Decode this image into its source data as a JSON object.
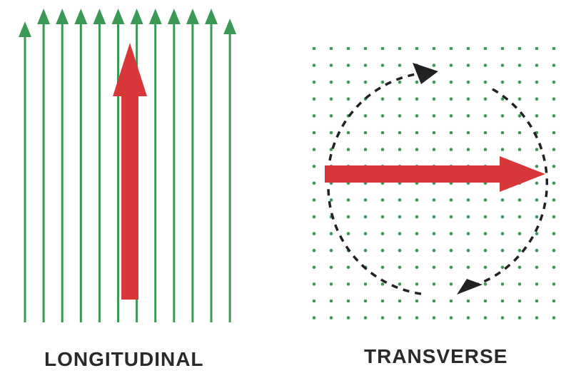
{
  "panels": {
    "longitudinal": {
      "label": "LONGITUDINAL",
      "field_line_count": 12
    },
    "transverse": {
      "label": "TRANSVERSE",
      "dot_columns": 15,
      "dot_rows": 17
    }
  },
  "colors": {
    "field_lines": "#3a9a55",
    "dots": "#3a9a55",
    "arrow": "#d8373a",
    "dashed_path": "#222222",
    "label_text": "#2a2a2a"
  },
  "icons": {
    "magnetization_arrow": "magnetization-arrow-icon",
    "rotation_direction": "rotation-arrowhead-icon"
  }
}
